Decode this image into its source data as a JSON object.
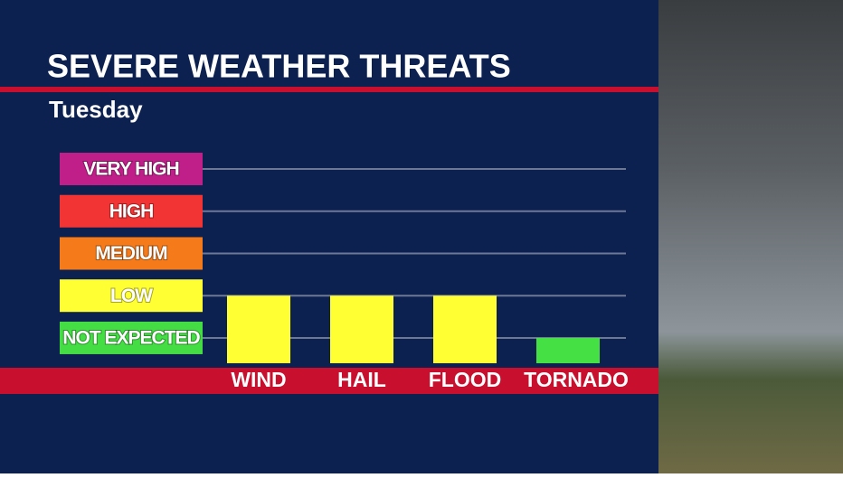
{
  "chart_data": {
    "type": "bar",
    "title": "SEVERE WEATHER THREATS",
    "subtitle": "Tuesday",
    "categories": [
      "WIND",
      "HAIL",
      "FLOOD",
      "TORNADO"
    ],
    "values": [
      2,
      2,
      2,
      1
    ],
    "colors": [
      "#ffff33",
      "#ffff33",
      "#ffff33",
      "#44e044"
    ],
    "ylim": [
      0.4,
      5
    ],
    "yticks": [
      {
        "value": 1,
        "label": "NOT EXPECTED"
      },
      {
        "value": 2,
        "label": "LOW"
      },
      {
        "value": 3,
        "label": "MEDIUM"
      },
      {
        "value": 4,
        "label": "HIGH"
      },
      {
        "value": 5,
        "label": "VERY HIGH"
      }
    ],
    "tick_colors": [
      "#44dd44",
      "#ffff33",
      "#f47a1a",
      "#f23434",
      "#c01f8a"
    ],
    "grid": true
  }
}
